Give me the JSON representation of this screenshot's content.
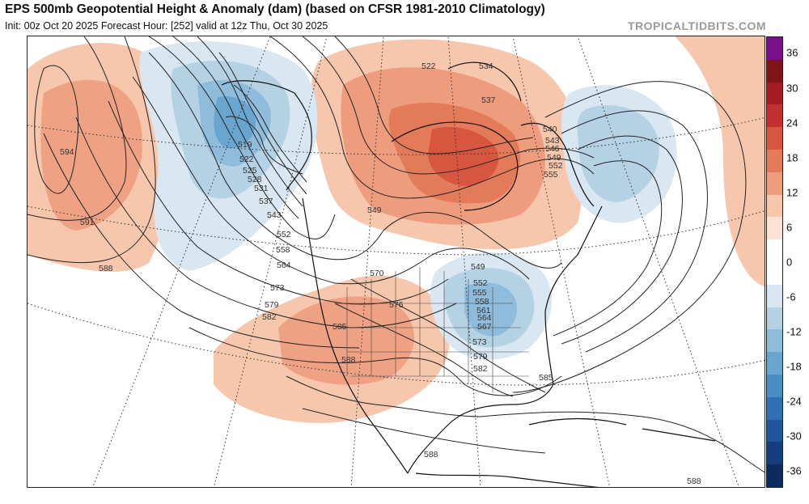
{
  "title": "EPS 500mb Geopotential Height & Anomaly (dam) (based on CFSR 1981-2010 Climatology)",
  "subtitle": "Init: 00z Oct 20 2025   Forecast Hour: [252]   valid at 12z Thu, Oct 30 2025",
  "brand": "TROPICALTIDBITS.COM",
  "colorbar": {
    "labels": [
      "36",
      "30",
      "24",
      "18",
      "12",
      "6",
      "0",
      "-6",
      "-12",
      "-18",
      "-24",
      "-30",
      "-36"
    ],
    "colors": [
      "#7a0f8a",
      "#7e1418",
      "#a31c24",
      "#c2302f",
      "#d6563f",
      "#e37a5a",
      "#ee9c7e",
      "#f7c7ad",
      "#fbe2d4",
      "#ffffff",
      "#ffffff",
      "#d8e7f1",
      "#b5d2e5",
      "#8fbcdb",
      "#6aa5d0",
      "#4a8cc4",
      "#2f6fb2",
      "#1f559a",
      "#153e80",
      "#0d2a5e"
    ]
  },
  "contour_labels": [
    "522",
    "534",
    "537",
    "540",
    "543",
    "546",
    "549",
    "552",
    "555",
    "594",
    "591",
    "588",
    "519",
    "522",
    "525",
    "528",
    "531",
    "537",
    "543",
    "552",
    "558",
    "564",
    "573",
    "579",
    "582",
    "549",
    "570",
    "576",
    "585",
    "588",
    "549",
    "552",
    "555",
    "558",
    "561",
    "564",
    "567",
    "573",
    "579",
    "582",
    "585",
    "588",
    "588"
  ]
}
